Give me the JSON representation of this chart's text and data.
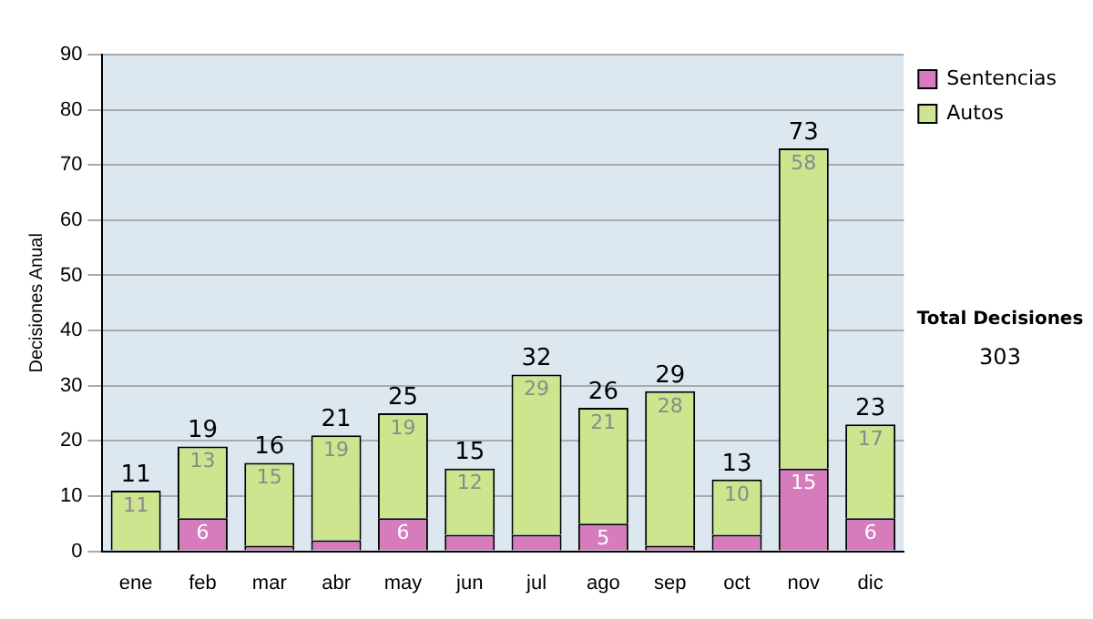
{
  "chart_data": {
    "type": "bar",
    "stacked": true,
    "ylabel": "Decisiones Anual",
    "categories": [
      "ene",
      "feb",
      "mar",
      "abr",
      "may",
      "jun",
      "jul",
      "ago",
      "sep",
      "oct",
      "nov",
      "dic"
    ],
    "series": [
      {
        "name": "Sentencias",
        "color": "#d67cbc",
        "values": [
          0,
          6,
          1,
          2,
          6,
          3,
          3,
          5,
          1,
          3,
          15,
          6
        ],
        "value_labels": [
          null,
          "6",
          null,
          null,
          "6",
          null,
          null,
          "5",
          null,
          null,
          "15",
          "6"
        ]
      },
      {
        "name": "Autos",
        "color": "#cce58e",
        "values": [
          11,
          13,
          15,
          19,
          19,
          12,
          29,
          21,
          28,
          10,
          58,
          17
        ],
        "value_labels": [
          "11",
          "13",
          "15",
          "19",
          "19",
          "12",
          "29",
          "21",
          "28",
          "10",
          "58",
          "17"
        ]
      }
    ],
    "totals": [
      "11",
      "19",
      "16",
      "21",
      "25",
      "15",
      "32",
      "26",
      "29",
      "13",
      "73",
      "23"
    ],
    "ylim": [
      0,
      90
    ],
    "yticks": [
      0,
      10,
      20,
      30,
      40,
      50,
      60,
      70,
      80,
      90
    ],
    "grid": "y",
    "legend": "right",
    "annotations": [
      "Total Decisiones",
      "303"
    ]
  }
}
